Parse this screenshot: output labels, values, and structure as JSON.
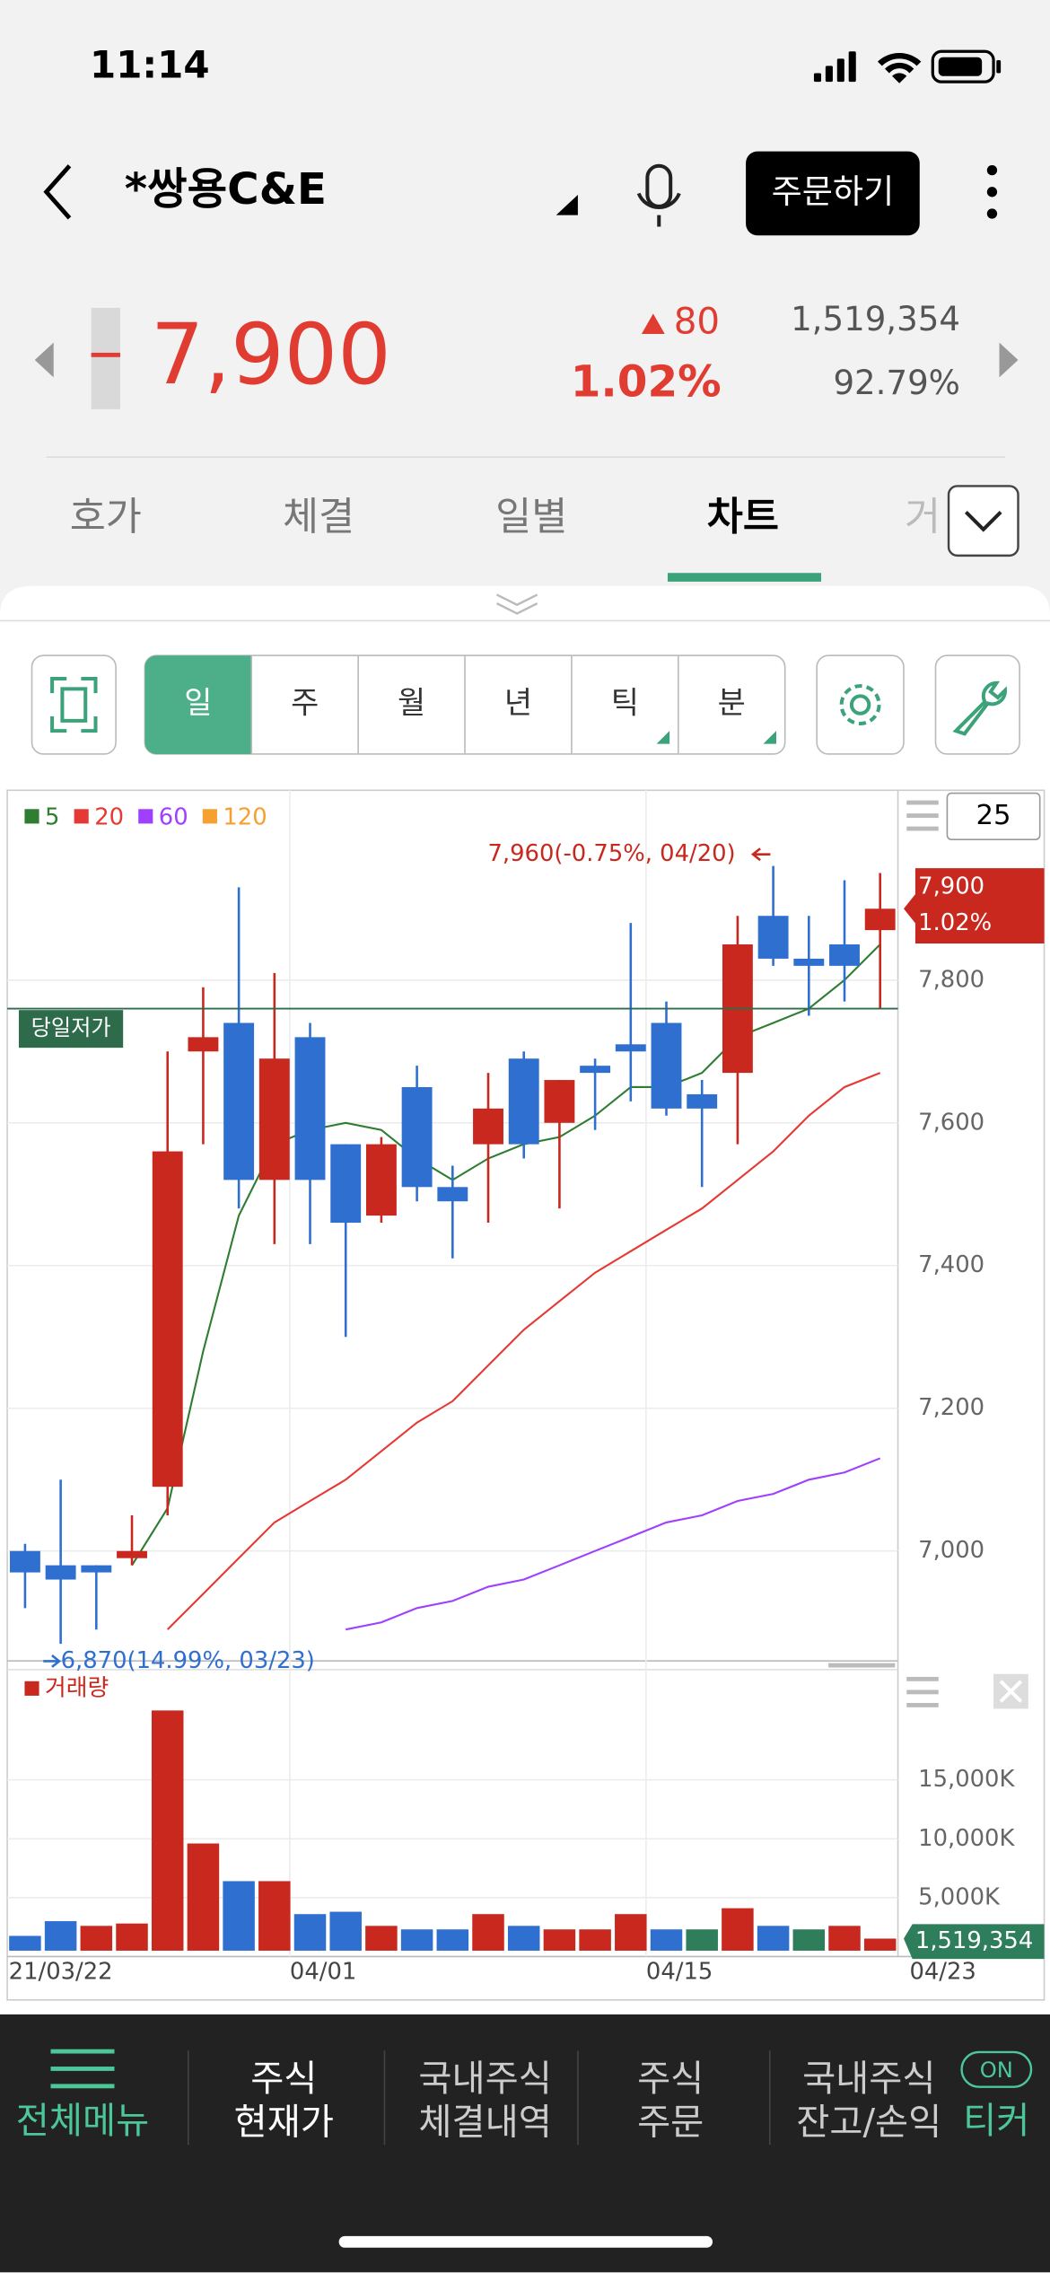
{
  "status_bar": {
    "time": "11:14"
  },
  "header": {
    "title": "*쌍용C&E",
    "order_button": "주문하기"
  },
  "quote": {
    "price": "7,900",
    "change": "80",
    "change_pct": "1.02%",
    "volume": "1,519,354",
    "ratio": "92.79%"
  },
  "tabs": [
    "호가",
    "체결",
    "일별",
    "차트",
    "거"
  ],
  "toolbar": {
    "period_buttons": [
      "일",
      "주",
      "월",
      "년",
      "틱",
      "분"
    ],
    "display_count": "25"
  },
  "chart_data": {
    "type": "candlestick",
    "categories": [
      "21/03/22",
      null,
      null,
      null,
      null,
      null,
      null,
      null,
      "04/01",
      null,
      null,
      null,
      null,
      null,
      null,
      null,
      null,
      null,
      "04/15",
      null,
      null,
      null,
      null,
      null,
      "04/23"
    ],
    "open": [
      7000,
      6980,
      6980,
      6990,
      7090,
      7700,
      7740,
      7520,
      7720,
      7570,
      7470,
      7650,
      7510,
      7570,
      7690,
      7600,
      7680,
      7710,
      7740,
      7640,
      7670,
      7890,
      7830,
      7850,
      7870
    ],
    "high": [
      7010,
      7100,
      6980,
      7050,
      7700,
      7790,
      7930,
      7810,
      7740,
      7570,
      7580,
      7680,
      7540,
      7670,
      7700,
      7660,
      7690,
      7880,
      7770,
      7660,
      7890,
      7960,
      7890,
      7940,
      7950
    ],
    "low": [
      6920,
      6870,
      6890,
      6980,
      7050,
      7570,
      7480,
      7430,
      7430,
      7300,
      7460,
      7490,
      7410,
      7460,
      7550,
      7480,
      7590,
      7630,
      7610,
      7510,
      7570,
      7820,
      7750,
      7770,
      7760
    ],
    "close": [
      6970,
      6960,
      6970,
      7000,
      7560,
      7720,
      7520,
      7690,
      7520,
      7460,
      7570,
      7510,
      7490,
      7620,
      7570,
      7660,
      7670,
      7700,
      7620,
      7620,
      7850,
      7830,
      7820,
      7820,
      7900
    ],
    "up_color": "#c8281e",
    "down_color": "#2f6fd0",
    "series": [
      {
        "name": "5",
        "color": "#2e7d32",
        "values": [
          null,
          null,
          null,
          6980,
          7060,
          7280,
          7470,
          7570,
          7590,
          7600,
          7590,
          7550,
          7520,
          7550,
          7570,
          7580,
          7610,
          7650,
          7650,
          7670,
          7720,
          7740,
          7760,
          7800,
          7850
        ]
      },
      {
        "name": "20",
        "color": "#e53935",
        "values": [
          null,
          null,
          null,
          null,
          6890,
          6940,
          6990,
          7040,
          7070,
          7100,
          7140,
          7180,
          7210,
          7260,
          7310,
          7350,
          7390,
          7420,
          7450,
          7480,
          7520,
          7560,
          7610,
          7650,
          7670
        ]
      },
      {
        "name": "60",
        "color": "#a040ff",
        "values": [
          null,
          null,
          null,
          null,
          null,
          null,
          null,
          null,
          null,
          6890,
          6900,
          6920,
          6930,
          6950,
          6960,
          6980,
          7000,
          7020,
          7040,
          7050,
          7070,
          7080,
          7100,
          7110,
          7130
        ]
      },
      {
        "name": "120",
        "color": "#f5a030",
        "values": [
          null,
          null,
          null,
          null,
          null,
          null,
          null,
          null,
          null,
          null,
          null,
          null,
          null,
          null,
          null,
          null,
          null,
          null,
          null,
          null,
          null,
          null,
          null,
          null,
          null
        ]
      }
    ],
    "ylim": [
      6848,
      8066
    ],
    "yticks": [
      {
        "value": 7000,
        "label": "7,000"
      },
      {
        "value": 7200,
        "label": "7,200"
      },
      {
        "value": 7400,
        "label": "7,400"
      },
      {
        "value": 7600,
        "label": "7,600"
      },
      {
        "value": 7800,
        "label": "7,800"
      }
    ],
    "grid": true,
    "day_low_label": "당일저가",
    "annotations": {
      "high": "7,960(-0.75%, 04/20)",
      "low": "6,870(14.99%, 03/23)"
    },
    "volume": {
      "type": "bar",
      "title": "거래량",
      "values": [
        1750000,
        3000000,
        2600000,
        2800000,
        20900000,
        9600000,
        6400000,
        6400000,
        3600000,
        3800000,
        2600000,
        2300000,
        2300000,
        3600000,
        2600000,
        2300000,
        2300000,
        3600000,
        2300000,
        2300000,
        4100000,
        2600000,
        2300000,
        2600000,
        1519354
      ],
      "colors": [
        "#2f6fd0",
        "#2f6fd0",
        "#c8281e",
        "#c8281e",
        "#c8281e",
        "#c8281e",
        "#2f6fd0",
        "#c8281e",
        "#2f6fd0",
        "#2f6fd0",
        "#c8281e",
        "#2f6fd0",
        "#2f6fd0",
        "#c8281e",
        "#2f6fd0",
        "#c8281e",
        "#c8281e",
        "#c8281e",
        "#2f6fd0",
        "#2e7d5b",
        "#c8281e",
        "#2f6fd0",
        "#2e7d5b",
        "#c8281e",
        "#c8281e"
      ],
      "ylim": [
        0,
        24000000
      ],
      "yticks": [
        {
          "value": 5000000,
          "label": "5,000K"
        },
        {
          "value": 10000000,
          "label": "10,000K"
        },
        {
          "value": 15000000,
          "label": "15,000K"
        }
      ],
      "grid": true
    }
  },
  "nav": [
    [
      "전체메뉴"
    ],
    [
      "주식",
      "현재가"
    ],
    [
      "국내주식",
      "체결내역"
    ],
    [
      "주식",
      "주문"
    ],
    [
      "국내주식",
      "잔고/손익"
    ]
  ],
  "ticker": {
    "badge": "ON",
    "label": "티커"
  }
}
